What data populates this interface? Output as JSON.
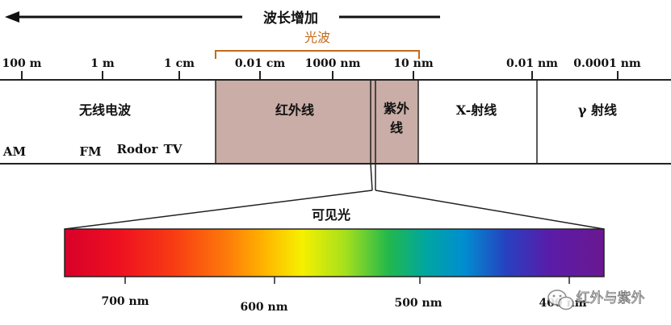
{
  "header": {
    "arrow_label": "波长增加",
    "light_label": "光波"
  },
  "scale_labels": [
    "100 m",
    "1 m",
    "1 cm",
    "0.01 cm",
    "1000 nm",
    "10 nm",
    "0.01 nm",
    "0.0001 nm"
  ],
  "bands": {
    "radio": "无线电波",
    "infrared": "红外线",
    "ultraviolet_line1": "紫外",
    "ultraviolet_line2": "线",
    "xray": "X-射线",
    "gamma": "γ 射线"
  },
  "radio_sub": {
    "am": "AM",
    "fm": "FM",
    "radar": "Rodor",
    "tv": "TV"
  },
  "visible": {
    "title": "可见光",
    "ticks": [
      "700 nm",
      "600 nm",
      "500 nm",
      "400 nm"
    ]
  },
  "watermark": {
    "text": "红外与紫外",
    "icon": "wechat-icon"
  },
  "colors": {
    "band_fill": "#c9ada6",
    "light_bracket": "#c46a1a",
    "line": "#222222"
  }
}
